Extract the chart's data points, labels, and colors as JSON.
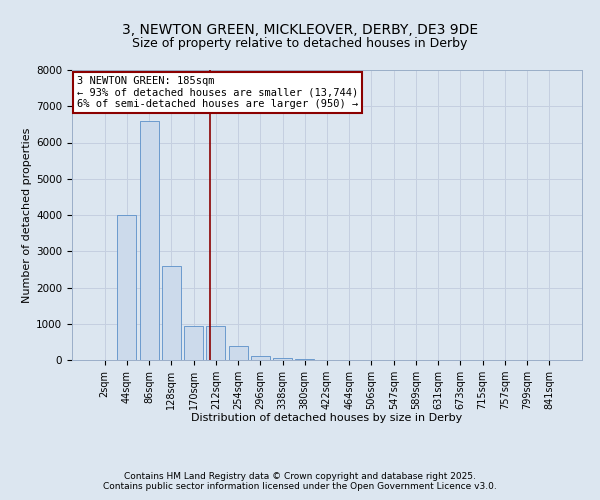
{
  "title_line1": "3, NEWTON GREEN, MICKLEOVER, DERBY, DE3 9DE",
  "title_line2": "Size of property relative to detached houses in Derby",
  "xlabel": "Distribution of detached houses by size in Derby",
  "ylabel": "Number of detached properties",
  "categories": [
    "2sqm",
    "44sqm",
    "86sqm",
    "128sqm",
    "170sqm",
    "212sqm",
    "254sqm",
    "296sqm",
    "338sqm",
    "380sqm",
    "422sqm",
    "464sqm",
    "506sqm",
    "547sqm",
    "589sqm",
    "631sqm",
    "673sqm",
    "715sqm",
    "757sqm",
    "799sqm",
    "841sqm"
  ],
  "values": [
    5,
    4000,
    6600,
    2600,
    950,
    950,
    400,
    110,
    50,
    20,
    0,
    0,
    0,
    0,
    0,
    0,
    0,
    0,
    0,
    0,
    0
  ],
  "bar_color": "#ccdaeb",
  "bar_edge_color": "#5b8fc9",
  "vline_x": 4.75,
  "vline_color": "#8b0000",
  "annotation_text": "3 NEWTON GREEN: 185sqm\n← 93% of detached houses are smaller (13,744)\n6% of semi-detached houses are larger (950) →",
  "annotation_box_color": "#8b0000",
  "annotation_facecolor": "#ffffff",
  "ylim": [
    0,
    8000
  ],
  "yticks": [
    0,
    1000,
    2000,
    3000,
    4000,
    5000,
    6000,
    7000,
    8000
  ],
  "grid_color": "#c5cfe0",
  "background_color": "#dce6f0",
  "footnote1": "Contains HM Land Registry data © Crown copyright and database right 2025.",
  "footnote2": "Contains public sector information licensed under the Open Government Licence v3.0.",
  "title_fontsize": 10,
  "subtitle_fontsize": 9,
  "annot_fontsize": 7.5,
  "axis_label_fontsize": 8,
  "tick_fontsize": 7,
  "footnote_fontsize": 6.5
}
